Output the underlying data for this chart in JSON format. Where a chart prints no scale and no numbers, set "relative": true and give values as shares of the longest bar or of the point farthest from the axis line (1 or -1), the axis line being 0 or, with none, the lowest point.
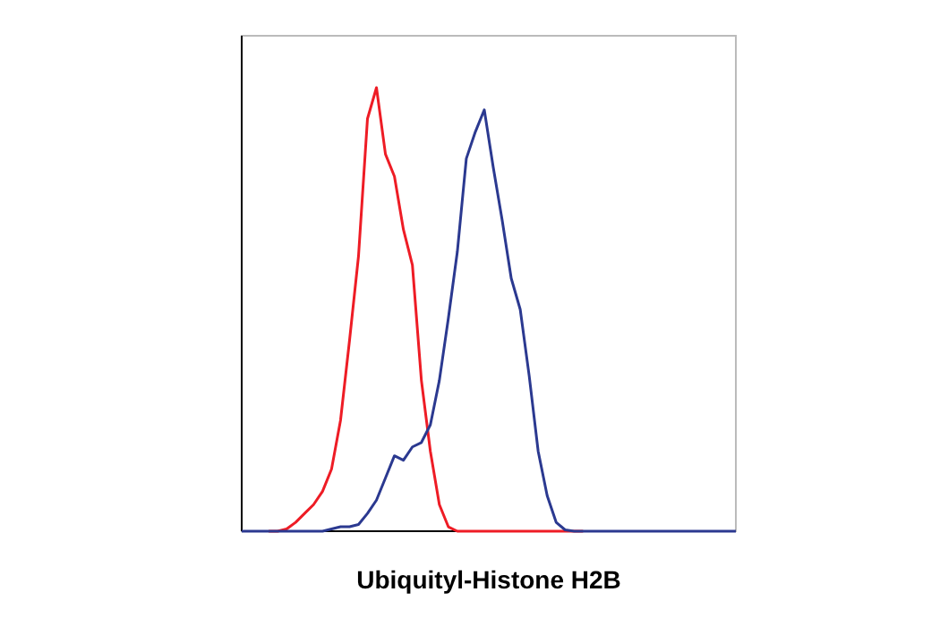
{
  "chart_data": {
    "type": "line",
    "relative": true,
    "xlabel": "Ubiquityl-Histone H2B",
    "categories": [
      null,
      null,
      null,
      null,
      null,
      null,
      null,
      null,
      null,
      null,
      null,
      null,
      null,
      null,
      null,
      null,
      null,
      null,
      null,
      null,
      null,
      null,
      null,
      null,
      null,
      null,
      null,
      null,
      null,
      null,
      null,
      null,
      null,
      null,
      null,
      null,
      null,
      null,
      null,
      null,
      null,
      null,
      null,
      null,
      null,
      null,
      null,
      null,
      null,
      null,
      null,
      null,
      null,
      null,
      null,
      null
    ],
    "series": [
      {
        "color": "#ee1c25",
        "values": [
          null,
          null,
          null,
          0,
          0,
          0.005,
          0.02,
          0.04,
          0.06,
          0.09,
          0.14,
          0.25,
          0.43,
          0.62,
          0.93,
          1.0,
          0.85,
          0.8,
          0.68,
          0.6,
          0.34,
          0.18,
          0.06,
          0.01,
          0,
          0,
          0,
          0,
          0,
          0,
          0,
          0,
          0,
          0,
          0,
          0,
          0,
          0,
          0,
          null,
          null,
          null,
          null,
          null,
          null,
          null,
          null,
          null,
          null,
          null,
          null,
          null,
          null,
          null,
          null,
          null
        ]
      },
      {
        "color": "#2b3990",
        "values": [
          0,
          0,
          0,
          0,
          0,
          0,
          0,
          0,
          0,
          0,
          0.005,
          0.01,
          0.01,
          0.015,
          0.04,
          0.07,
          0.12,
          0.17,
          0.16,
          0.19,
          0.2,
          0.24,
          0.34,
          0.48,
          0.63,
          0.84,
          0.9,
          0.95,
          0.82,
          0.7,
          0.57,
          0.5,
          0.35,
          0.18,
          0.08,
          0.02,
          0.003,
          0,
          0,
          0,
          0,
          0,
          0,
          0,
          0,
          0,
          0,
          0,
          0,
          0,
          0,
          0,
          0,
          0,
          0,
          0
        ]
      }
    ]
  }
}
